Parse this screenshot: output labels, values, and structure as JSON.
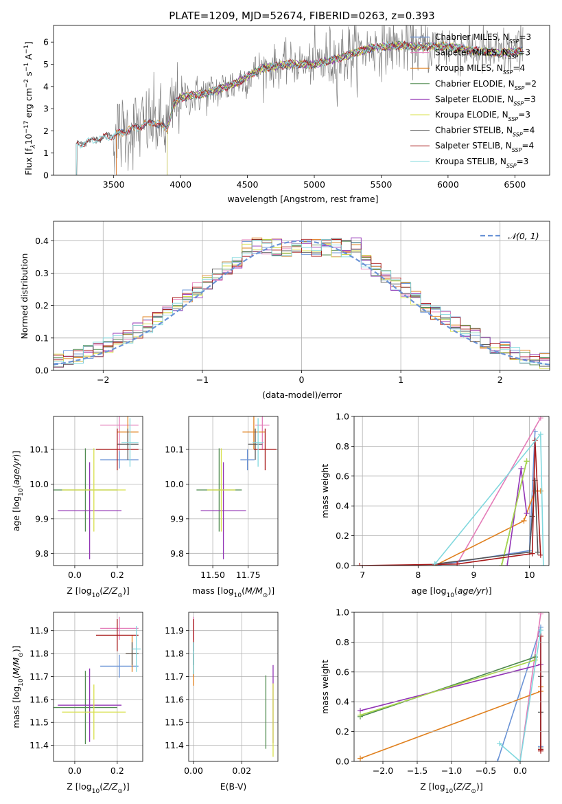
{
  "figure": {
    "title": "PLATE=1209, MJD=52674, FIBERID=0263, z=0.393"
  },
  "series_colors": {
    "Chabrier MILES": "#6a93d6",
    "Salpeter MILES": "#e47cb8",
    "Kroupa MILES": "#e0801e",
    "Chabrier ELODIE": "#4e8a4e",
    "Salpeter ELODIE": "#9234b5",
    "Kroupa ELODIE": "#d8e04a",
    "Chabrier STELIB": "#555555",
    "Salpeter STELIB": "#a81a1a",
    "Kroupa STELIB": "#80d8de",
    "data": "#7f7f7f",
    "normal": "#6a93d6",
    "kroupa_elodie_mass": "#a8d84a"
  },
  "chart_data": [
    {
      "id": "spectrum",
      "type": "line",
      "title": "PLATE=1209, MJD=52674, FIBERID=0263, z=0.393",
      "xlabel": "wavelength [Angstrom, rest frame]",
      "ylabel_parts": [
        "Flux [f",
        "λ",
        "10",
        "−17",
        " erg cm",
        "−2",
        " s",
        "−1",
        " A",
        "−1",
        "]"
      ],
      "xlim": [
        3050,
        6760
      ],
      "ylim": [
        0,
        6.75
      ],
      "xticks": [
        3500,
        4000,
        4500,
        5000,
        5500,
        6000,
        6500
      ],
      "yticks": [
        0,
        1,
        2,
        3,
        4,
        5,
        6
      ],
      "grid": false,
      "legend_position": "top-right",
      "legend": [
        {
          "name": "Chabrier MILES",
          "nssp": "3"
        },
        {
          "name": "Salpeter MILES",
          "nssp": "3"
        },
        {
          "name": "Kroupa MILES",
          "nssp": "4"
        },
        {
          "name": "Chabrier ELODIE",
          "nssp": "2"
        },
        {
          "name": "Salpeter ELODIE",
          "nssp": "3"
        },
        {
          "name": "Kroupa ELODIE",
          "nssp": "3"
        },
        {
          "name": "Chabrier STELIB",
          "nssp": "4"
        },
        {
          "name": "Salpeter STELIB",
          "nssp": "4"
        },
        {
          "name": "Kroupa STELIB",
          "nssp": "3"
        }
      ],
      "nssp_label": "N",
      "nssp_sub": "SSP",
      "data_start": 3220,
      "data_end": 6560,
      "continuum": [
        [
          3220,
          1.35
        ],
        [
          3350,
          1.6
        ],
        [
          3500,
          1.8
        ],
        [
          3600,
          2.0
        ],
        [
          3700,
          2.2
        ],
        [
          3800,
          2.4
        ],
        [
          3900,
          2.1
        ],
        [
          3950,
          3.2
        ],
        [
          4000,
          3.5
        ],
        [
          4200,
          3.7
        ],
        [
          4400,
          4.1
        ],
        [
          4600,
          4.8
        ],
        [
          4800,
          5.0
        ],
        [
          5000,
          5.0
        ],
        [
          5200,
          5.3
        ],
        [
          5400,
          5.7
        ],
        [
          5600,
          5.85
        ],
        [
          5800,
          5.8
        ],
        [
          6000,
          5.8
        ],
        [
          6200,
          5.6
        ],
        [
          6400,
          5.5
        ],
        [
          6560,
          5.6
        ]
      ]
    },
    {
      "id": "residuals",
      "type": "histogram",
      "xlabel": "(data-model)/error",
      "ylabel": "Normed distribution",
      "xlim": [
        -2.5,
        2.5
      ],
      "ylim": [
        0,
        0.46
      ],
      "xticks": [
        -2,
        -1,
        0,
        1,
        2
      ],
      "yticks": [
        0,
        0.1,
        0.2,
        0.3,
        0.4
      ],
      "grid": true,
      "legend_position": "top-right",
      "legend_label": "𝒩(0, 1)",
      "bin_width": 0.1,
      "bins_left": -2.5,
      "bins_right": 2.5
    },
    {
      "id": "age-vs-Z",
      "type": "errorbar",
      "xlabel": "Z [log10(Z/Z⊙)]",
      "xlabel_parts": [
        "Z [log",
        "10",
        "(",
        "Z/Z",
        "⊙",
        ")]"
      ],
      "ylabel_parts": [
        "age  [log",
        "10",
        "(",
        "age/yr",
        ")]"
      ],
      "xlim": [
        -0.1,
        0.32
      ],
      "ylim": [
        9.765,
        10.195
      ],
      "xticks": [
        0.0,
        0.2
      ],
      "yticks": [
        9.8,
        9.9,
        10.0,
        10.1
      ],
      "grid": true,
      "points": [
        {
          "series": "Chabrier MILES",
          "x": 0.21,
          "xerr": [
            0.09,
            0.09
          ],
          "y": 10.07,
          "yerr": [
            0.025,
            0.025
          ]
        },
        {
          "series": "Salpeter MILES",
          "x": 0.21,
          "xerr": [
            0.09,
            0.09
          ],
          "y": 10.17,
          "yerr": [
            0.075,
            0.075
          ]
        },
        {
          "series": "Kroupa MILES",
          "x": 0.25,
          "xerr": [
            0.05,
            0.05
          ],
          "y": 10.15,
          "yerr": [
            0.05,
            0.05
          ]
        },
        {
          "series": "Chabrier ELODIE",
          "x": 0.05,
          "xerr": [
            0.15,
            0.15
          ],
          "y": 9.983,
          "yerr": [
            0.12,
            0.12
          ]
        },
        {
          "series": "Salpeter ELODIE",
          "x": 0.07,
          "xerr": [
            0.15,
            0.15
          ],
          "y": 9.923,
          "yerr": [
            0.14,
            0.14
          ]
        },
        {
          "series": "Kroupa ELODIE",
          "x": 0.09,
          "xerr": [
            0.15,
            0.15
          ],
          "y": 9.983,
          "yerr": [
            0.12,
            0.12
          ]
        },
        {
          "series": "Chabrier STELIB",
          "x": 0.25,
          "xerr": [
            0.05,
            0.05
          ],
          "y": 10.115,
          "yerr": [
            0.045,
            0.045
          ]
        },
        {
          "series": "Salpeter STELIB",
          "x": 0.2,
          "xerr": [
            0.1,
            0.1
          ],
          "y": 10.1,
          "yerr": [
            0.06,
            0.06
          ]
        },
        {
          "series": "Kroupa STELIB",
          "x": 0.26,
          "xerr": [
            0.04,
            0.04
          ],
          "y": 10.12,
          "yerr": [
            0.07,
            0.07
          ]
        }
      ]
    },
    {
      "id": "age-vs-mass",
      "type": "errorbar",
      "xlabel_parts": [
        "mass [log",
        "10",
        "(",
        "M/M",
        "⊙",
        ")]"
      ],
      "xlim": [
        11.33,
        11.96
      ],
      "ylim": [
        9.765,
        10.195
      ],
      "xticks": [
        11.5,
        11.75
      ],
      "yticks": [
        9.8,
        9.9,
        10.0,
        10.1
      ],
      "grid": true,
      "points": [
        {
          "series": "Chabrier MILES",
          "x": 11.745,
          "xerr": [
            0.05,
            0.05
          ],
          "y": 10.07,
          "yerr": [
            0.03,
            0.03
          ]
        },
        {
          "series": "Salpeter MILES",
          "x": 11.85,
          "xerr": [
            0.05,
            0.05
          ],
          "y": 10.17,
          "yerr": [
            0.07,
            0.07
          ]
        },
        {
          "series": "Kroupa MILES",
          "x": 11.79,
          "xerr": [
            0.08,
            0.08
          ],
          "y": 10.15,
          "yerr": [
            0.05,
            0.05
          ]
        },
        {
          "series": "Chabrier ELODIE",
          "x": 11.545,
          "xerr": [
            0.16,
            0.16
          ],
          "y": 9.983,
          "yerr": [
            0.12,
            0.12
          ]
        },
        {
          "series": "Salpeter ELODIE",
          "x": 11.575,
          "xerr": [
            0.16,
            0.16
          ],
          "y": 9.923,
          "yerr": [
            0.14,
            0.14
          ]
        },
        {
          "series": "Kroupa ELODIE",
          "x": 11.56,
          "xerr": [
            0.1,
            0.1
          ],
          "y": 9.983,
          "yerr": [
            0.12,
            0.12
          ]
        },
        {
          "series": "Chabrier STELIB",
          "x": 11.8,
          "xerr": [
            0.05,
            0.05
          ],
          "y": 10.115,
          "yerr": [
            0.045,
            0.045
          ]
        },
        {
          "series": "Salpeter STELIB",
          "x": 11.87,
          "xerr": [
            0.08,
            0.08
          ],
          "y": 10.1,
          "yerr": [
            0.06,
            0.06
          ]
        },
        {
          "series": "Kroupa STELIB",
          "x": 11.82,
          "xerr": [
            0.04,
            0.04
          ],
          "y": 10.12,
          "yerr": [
            0.07,
            0.07
          ]
        }
      ]
    },
    {
      "id": "massweight-vs-age",
      "type": "line",
      "xlabel_parts": [
        "age  [log",
        "10",
        "(",
        "age/yr",
        ")]"
      ],
      "ylabel": "mass weight",
      "xlim": [
        6.85,
        10.35
      ],
      "ylim": [
        0,
        1.0
      ],
      "xticks": [
        7,
        8,
        9,
        10
      ],
      "yticks": [
        0.0,
        0.2,
        0.4,
        0.6,
        0.8,
        1.0
      ],
      "grid": true,
      "series": [
        {
          "name": "Chabrier MILES",
          "x": [
            8.3,
            10.0,
            10.1
          ],
          "y": [
            0.0,
            0.1,
            0.9
          ]
        },
        {
          "name": "Salpeter MILES",
          "x": [
            8.7,
            10.2
          ],
          "y": [
            0.01,
            0.99
          ]
        },
        {
          "name": "Kroupa MILES",
          "x": [
            8.3,
            9.9,
            10.1,
            10.2
          ],
          "y": [
            0.0,
            0.3,
            0.5,
            0.5
          ]
        },
        {
          "name": "Chabrier ELODIE",
          "x": [
            9.5,
            9.95
          ],
          "y": [
            0.0,
            0.7
          ]
        },
        {
          "name": "Salpeter ELODIE",
          "x": [
            9.6,
            9.85,
            9.95
          ],
          "y": [
            0.0,
            0.65,
            0.35
          ]
        },
        {
          "name": "Kroupa ELODIE",
          "x": [
            9.5,
            9.95
          ],
          "y": [
            0.0,
            0.7
          ]
        },
        {
          "name": "Chabrier STELIB",
          "x": [
            8.3,
            10.0,
            10.05,
            10.1,
            10.15
          ],
          "y": [
            0.01,
            0.09,
            0.33,
            0.57,
            0.09
          ]
        },
        {
          "name": "Salpeter STELIB",
          "x": [
            6.95,
            8.7,
            10.05,
            10.1,
            10.2
          ],
          "y": [
            0.0,
            0.01,
            0.08,
            0.84,
            0.07
          ]
        },
        {
          "name": "Kroupa STELIB",
          "x": [
            8.3,
            10.2,
            10.25
          ],
          "y": [
            0.01,
            0.88,
            0.0
          ]
        }
      ]
    },
    {
      "id": "mass-vs-Z",
      "type": "errorbar",
      "xlabel_parts": [
        "Z [log",
        "10",
        "(",
        "Z/Z",
        "⊙",
        ")]"
      ],
      "ylabel_parts": [
        "mass [log",
        "10",
        "(",
        "M/M",
        "⊙",
        ")]"
      ],
      "xlim": [
        -0.1,
        0.32
      ],
      "ylim": [
        11.33,
        11.98
      ],
      "xticks": [
        0.0,
        0.2
      ],
      "yticks": [
        11.4,
        11.5,
        11.6,
        11.7,
        11.8,
        11.9
      ],
      "grid": true,
      "points": [
        {
          "series": "Chabrier MILES",
          "x": 0.21,
          "xerr": [
            0.09,
            0.09
          ],
          "y": 11.745,
          "yerr": [
            0.05,
            0.05
          ]
        },
        {
          "series": "Salpeter MILES",
          "x": 0.21,
          "xerr": [
            0.09,
            0.09
          ],
          "y": 11.91,
          "yerr": [
            0.05,
            0.05
          ]
        },
        {
          "series": "Kroupa MILES",
          "x": 0.27,
          "xerr": [
            0.03,
            0.03
          ],
          "y": 11.8,
          "yerr": [
            0.08,
            0.08
          ]
        },
        {
          "series": "Chabrier ELODIE",
          "x": 0.05,
          "xerr": [
            0.15,
            0.15
          ],
          "y": 11.565,
          "yerr": [
            0.16,
            0.16
          ]
        },
        {
          "series": "Salpeter ELODIE",
          "x": 0.07,
          "xerr": [
            0.15,
            0.15
          ],
          "y": 11.575,
          "yerr": [
            0.16,
            0.16
          ]
        },
        {
          "series": "Kroupa ELODIE",
          "x": 0.09,
          "xerr": [
            0.15,
            0.15
          ],
          "y": 11.545,
          "yerr": [
            0.12,
            0.12
          ]
        },
        {
          "series": "Chabrier STELIB",
          "x": 0.27,
          "xerr": [
            0.03,
            0.03
          ],
          "y": 11.8,
          "yerr": [
            0.05,
            0.05
          ]
        },
        {
          "series": "Salpeter STELIB",
          "x": 0.2,
          "xerr": [
            0.1,
            0.1
          ],
          "y": 11.88,
          "yerr": [
            0.07,
            0.07
          ]
        },
        {
          "series": "Kroupa STELIB",
          "x": 0.29,
          "xerr": [
            0.02,
            0.02
          ],
          "y": 11.82,
          "yerr": [
            0.1,
            0.1
          ]
        }
      ]
    },
    {
      "id": "mass-vs-EBV",
      "type": "errorbar",
      "xlabel": "E(B-V)",
      "xlim": [
        -0.002,
        0.035
      ],
      "ylim": [
        11.33,
        11.98
      ],
      "xticks": [
        0.0,
        0.02
      ],
      "yticks": [
        11.4,
        11.5,
        11.6,
        11.7,
        11.8,
        11.9
      ],
      "grid": true,
      "points": [
        {
          "series": "Chabrier MILES",
          "x": 0.0,
          "y": 11.75,
          "yerr": [
            0.05,
            0.05
          ]
        },
        {
          "series": "Salpeter MILES",
          "x": 0.0,
          "y": 11.91,
          "yerr": [
            0.05,
            0.05
          ]
        },
        {
          "series": "Kroupa MILES",
          "x": 0.0,
          "y": 11.73,
          "yerr": [
            0.07,
            0.07
          ]
        },
        {
          "series": "Chabrier ELODIE",
          "x": 0.03,
          "y": 11.545,
          "yerr": [
            0.16,
            0.16
          ]
        },
        {
          "series": "Salpeter ELODIE",
          "x": 0.033,
          "y": 11.58,
          "yerr": [
            0.17,
            0.17
          ]
        },
        {
          "series": "Kroupa ELODIE",
          "x": 0.033,
          "y": 11.51,
          "yerr": [
            0.16,
            0.16
          ]
        },
        {
          "series": "Chabrier STELIB",
          "x": 0.0,
          "y": 11.8,
          "yerr": [
            0.05,
            0.05
          ]
        },
        {
          "series": "Salpeter STELIB",
          "x": 0.0,
          "y": 11.88,
          "yerr": [
            0.07,
            0.07
          ]
        },
        {
          "series": "Kroupa STELIB",
          "x": 0.0,
          "y": 11.78,
          "yerr": [
            0.07,
            0.07
          ]
        }
      ]
    },
    {
      "id": "massweight-vs-Z",
      "type": "line",
      "xlabel_parts": [
        "Z [log",
        "10",
        "(",
        "Z/Z",
        "⊙",
        ")]"
      ],
      "ylabel": "mass weight",
      "xlim": [
        -2.42,
        0.42
      ],
      "ylim": [
        0,
        1.0
      ],
      "xticks": [
        -2.0,
        -1.5,
        -1.0,
        -0.5,
        0.0
      ],
      "grid": true,
      "series": [
        {
          "name": "Chabrier MILES",
          "x": [
            -0.33,
            0.3,
            0.3
          ],
          "y": [
            0.0,
            0.9,
            0.1
          ]
        },
        {
          "name": "Salpeter MILES",
          "x": [
            0.0,
            0.3
          ],
          "y": [
            0.0,
            0.99
          ]
        },
        {
          "name": "Kroupa MILES",
          "x": [
            -2.33,
            0.3,
            0.3
          ],
          "y": [
            0.02,
            0.47,
            0.5
          ]
        },
        {
          "name": "Chabrier ELODIE",
          "x": [
            -2.33,
            0.22
          ],
          "y": [
            0.3,
            0.7
          ]
        },
        {
          "name": "Salpeter ELODIE",
          "x": [
            -2.33,
            0.3
          ],
          "y": [
            0.34,
            0.65
          ]
        },
        {
          "name": "Kroupa ELODIE",
          "x": [
            -2.33,
            0.22
          ],
          "y": [
            0.31,
            0.68
          ]
        },
        {
          "name": "Chabrier STELIB",
          "x": [
            0.3,
            0.3,
            0.3
          ],
          "y": [
            0.09,
            0.33,
            0.57
          ]
        },
        {
          "name": "Salpeter STELIB",
          "x": [
            0.3,
            0.3,
            0.3
          ],
          "y": [
            0.08,
            0.84,
            0.07
          ]
        },
        {
          "name": "Kroupa STELIB",
          "x": [
            -0.3,
            0.0,
            0.3
          ],
          "y": [
            0.12,
            0.0,
            0.88
          ]
        }
      ]
    }
  ]
}
